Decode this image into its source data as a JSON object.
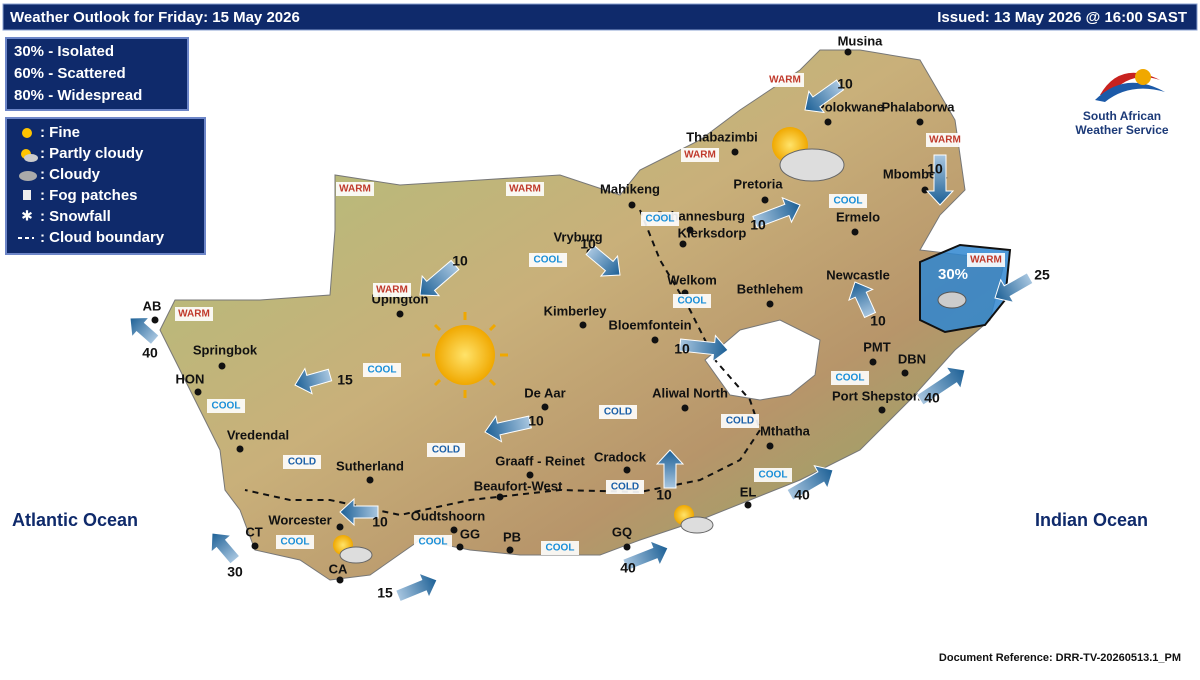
{
  "header": {
    "title": "Weather Outlook for Friday: 15 May 2026",
    "issued": "Issued: 13 May  2026 @ 16:00 SAST"
  },
  "probability_legend": [
    "30% - Isolated",
    "60% - Scattered",
    "80% - Widespread"
  ],
  "symbol_legend": [
    ": Fine",
    ": Partly cloudy",
    ": Cloudy",
    ": Fog patches",
    ": Snowfall",
    ": Cloud boundary"
  ],
  "logo": {
    "line1": "South African",
    "line2": "Weather Service"
  },
  "oceans": [
    "Atlantic Ocean",
    "Indian Ocean"
  ],
  "cities": [
    "Musina",
    "Polokwane",
    "Phalaborwa",
    "Thabazimbi",
    "Mbombela",
    "Mahikeng",
    "Pretoria",
    "Johannesburg",
    "Klerksdorp",
    "Ermelo",
    "Vryburg",
    "Welkom",
    "Bethlehem",
    "Newcastle",
    "Upington",
    "Kimberley",
    "Bloemfontein",
    "AB",
    "Springbok",
    "HON",
    "PMT",
    "DBN",
    "Port Shepstone",
    "De Aar",
    "Aliwal North",
    "Vredendal",
    "Mthatha",
    "Sutherland",
    "Graaff - Reinet",
    "Cradock",
    "Beaufort-West",
    "EL",
    "Worcester",
    "Oudtshoorn",
    "GG",
    "PB",
    "GQ",
    "CT",
    "CA"
  ],
  "temperature_labels": [
    "WARM",
    "WARM",
    "WARM",
    "WARM",
    "WARM",
    "WARM",
    "WARM",
    "WARM",
    "COOL",
    "COOL",
    "COOL",
    "COOL",
    "COOL",
    "COOL",
    "COOL",
    "COOL",
    "COOL",
    "COOL",
    "COOL",
    "COLD",
    "COLD",
    "COLD",
    "COLD",
    "COLD"
  ],
  "winds": [
    10,
    10,
    10,
    10,
    10,
    25,
    10,
    10,
    40,
    15,
    40,
    10,
    10,
    40,
    10,
    30,
    40,
    15
  ],
  "rain_probability": "30%",
  "footer": "Document Reference: DRR-TV-20260513.1_PM"
}
